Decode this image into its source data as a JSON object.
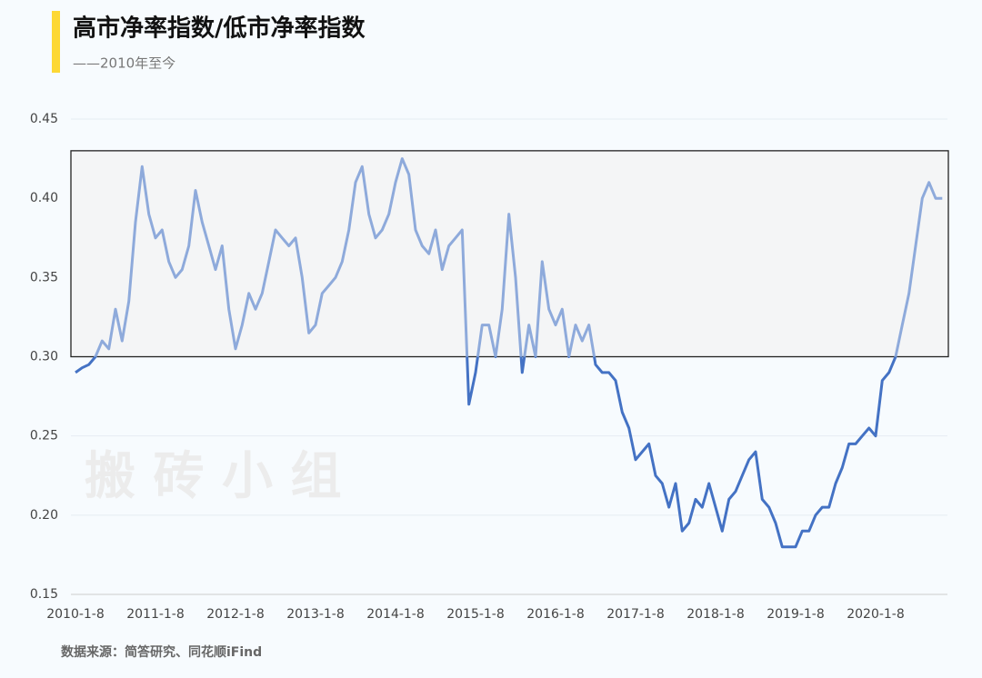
{
  "chart_data": {
    "type": "line",
    "title": "高市净率指数/低市净率指数",
    "subtitle": "——2010年至今",
    "source": "数据来源：简答研究、同花顺iFind",
    "watermark": "搬 砖 小 组",
    "categories": [
      "2010-1-8",
      null,
      null,
      null,
      null,
      null,
      null,
      null,
      null,
      null,
      null,
      null,
      "2011-1-8",
      null,
      null,
      null,
      null,
      null,
      null,
      null,
      null,
      null,
      null,
      null,
      "2012-1-8",
      null,
      null,
      null,
      null,
      null,
      null,
      null,
      null,
      null,
      null,
      null,
      "2013-1-8",
      null,
      null,
      null,
      null,
      null,
      null,
      null,
      null,
      null,
      null,
      null,
      "2014-1-8",
      null,
      null,
      null,
      null,
      null,
      null,
      null,
      null,
      null,
      null,
      null,
      "2015-1-8",
      null,
      null,
      null,
      null,
      null,
      null,
      null,
      null,
      null,
      null,
      null,
      "2016-1-8",
      null,
      null,
      null,
      null,
      null,
      null,
      null,
      null,
      null,
      null,
      null,
      "2017-1-8",
      null,
      null,
      null,
      null,
      null,
      null,
      null,
      null,
      null,
      null,
      null,
      "2018-1-8",
      null,
      null,
      null,
      null,
      null,
      null,
      null,
      null,
      null,
      null,
      null,
      "2019-1-8",
      null,
      null,
      null,
      null,
      null,
      null,
      null,
      null,
      null,
      null,
      null,
      "2020-1-8",
      null,
      null,
      null,
      null,
      null,
      null,
      null,
      null,
      null,
      null
    ],
    "values": [
      0.29,
      0.293,
      0.295,
      0.3,
      0.31,
      0.305,
      0.33,
      0.31,
      0.335,
      0.385,
      0.42,
      0.39,
      0.375,
      0.38,
      0.36,
      0.35,
      0.355,
      0.37,
      0.405,
      0.385,
      0.37,
      0.355,
      0.37,
      0.33,
      0.305,
      0.32,
      0.34,
      0.33,
      0.34,
      0.36,
      0.38,
      0.375,
      0.37,
      0.375,
      0.35,
      0.315,
      0.32,
      0.34,
      0.345,
      0.35,
      0.36,
      0.38,
      0.41,
      0.42,
      0.39,
      0.375,
      0.38,
      0.39,
      0.41,
      0.425,
      0.415,
      0.38,
      0.37,
      0.365,
      0.38,
      0.355,
      0.37,
      0.375,
      0.38,
      0.27,
      0.29,
      0.32,
      0.32,
      0.3,
      0.33,
      0.39,
      0.35,
      0.29,
      0.32,
      0.3,
      0.36,
      0.33,
      0.32,
      0.33,
      0.3,
      0.32,
      0.31,
      0.32,
      0.295,
      0.29,
      0.29,
      0.285,
      0.265,
      0.255,
      0.235,
      0.24,
      0.245,
      0.225,
      0.22,
      0.205,
      0.22,
      0.19,
      0.195,
      0.21,
      0.205,
      0.22,
      0.205,
      0.19,
      0.21,
      0.215,
      0.225,
      0.235,
      0.24,
      0.21,
      0.205,
      0.195,
      0.18,
      0.18,
      0.18,
      0.19,
      0.19,
      0.2,
      0.205,
      0.205,
      0.22,
      0.23,
      0.245,
      0.245,
      0.25,
      0.255,
      0.25,
      0.285,
      0.29,
      0.3,
      0.32,
      0.34,
      0.37,
      0.4,
      0.41,
      0.4,
      0.4
    ],
    "color": "#4472c4",
    "highlight_color": "#8eaadb",
    "highlight_range": [
      0.3,
      0.43
    ],
    "ylim": [
      0.15,
      0.45
    ],
    "yticks": [
      0.15,
      {
        "value": 0.2,
        "label": "0.20"
      },
      0.25,
      {
        "value": 0.3,
        "label": "0.30"
      },
      0.35,
      {
        "value": 0.4,
        "label": "0.40"
      },
      0.45
    ],
    "grid": true
  }
}
